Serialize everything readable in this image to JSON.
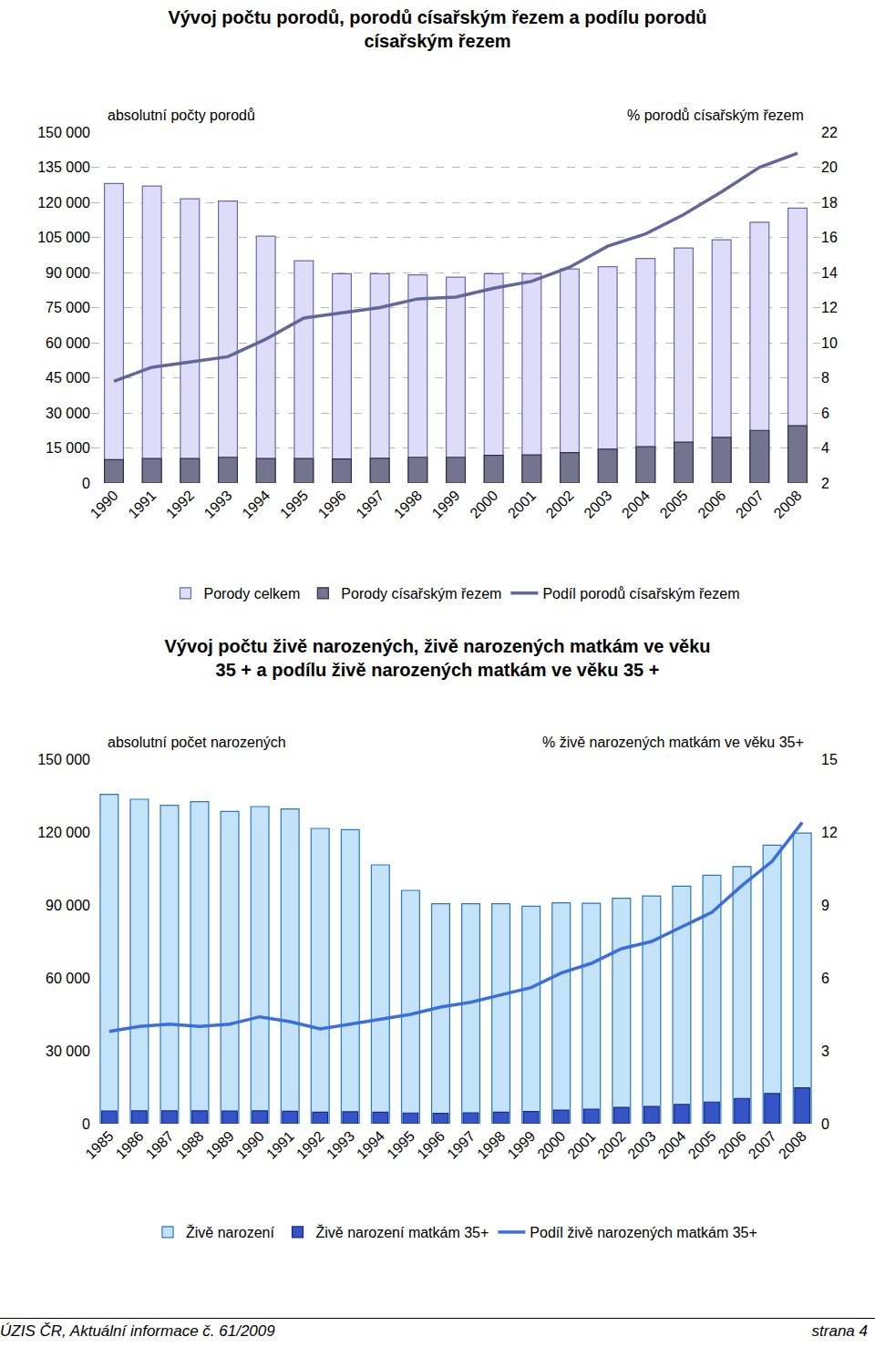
{
  "chart_data": [
    {
      "type": "bar",
      "title": [
        "Vývoj počtu porodů, porodů císařským řezem a podílu porodů",
        "císařským řezem"
      ],
      "ylabel": "absolutní počty porodů",
      "y2label": "% porodů císařským řezem",
      "categories": [
        "1990",
        "1991",
        "1992",
        "1993",
        "1994",
        "1995",
        "1996",
        "1997",
        "1998",
        "1999",
        "2000",
        "2001",
        "2002",
        "2003",
        "2004",
        "2005",
        "2006",
        "2007",
        "2008"
      ],
      "series": [
        {
          "name": "Porody celkem",
          "color": "#dedcf8",
          "values": [
            128000,
            127000,
            121500,
            120500,
            105500,
            95000,
            89500,
            89500,
            89000,
            88000,
            89500,
            89500,
            91500,
            92500,
            96000,
            100500,
            104000,
            111500,
            117500
          ]
        },
        {
          "name": "Porody císařským řezem",
          "color": "#74748e",
          "values": [
            10000,
            10500,
            10500,
            11000,
            10500,
            10500,
            10300,
            10600,
            11000,
            11000,
            11800,
            12000,
            13000,
            14500,
            15500,
            17500,
            19500,
            22500,
            24500
          ]
        },
        {
          "name": "Podíl porodů císařským řezem",
          "color": "#62669a",
          "type": "line",
          "axis": "y2",
          "values": [
            7.8,
            8.6,
            8.9,
            9.2,
            10.2,
            11.4,
            11.7,
            12.0,
            12.5,
            12.6,
            13.1,
            13.5,
            14.3,
            15.5,
            16.2,
            17.3,
            18.6,
            20.0,
            20.8
          ]
        }
      ],
      "ylim": [
        0,
        150000
      ],
      "yticks": [
        0,
        {
          "value": 15000,
          "label": "15 000"
        },
        {
          "value": 30000,
          "label": "30 000"
        },
        {
          "value": 45000,
          "label": "45 000"
        },
        {
          "value": 60000,
          "label": "60 000"
        },
        {
          "value": 75000,
          "label": "75 000"
        },
        {
          "value": 90000,
          "label": "90 000"
        },
        {
          "value": 105000,
          "label": "105 000"
        },
        {
          "value": 120000,
          "label": "120 000"
        },
        {
          "value": 135000,
          "label": "135 000"
        },
        {
          "value": 150000,
          "label": "150 000"
        }
      ],
      "y2lim": [
        2,
        22
      ],
      "y2ticks": [
        2,
        4,
        6,
        8,
        10,
        12,
        14,
        16,
        18,
        20,
        22
      ],
      "grid": true,
      "legend": "bottom"
    },
    {
      "type": "bar",
      "title": [
        "Vývoj počtu živě narozených, živě narozených matkám ve věku",
        "35 + a podílu živě narozených matkám ve věku 35 +"
      ],
      "ylabel": "absolutní počet narozených",
      "y2label": "% živě narozených matkám ve věku 35+",
      "categories": [
        "1985",
        "1986",
        "1987",
        "1988",
        "1989",
        "1990",
        "1991",
        "1992",
        "1993",
        "1994",
        "1995",
        "1996",
        "1997",
        "1998",
        "1999",
        "2000",
        "2001",
        "2002",
        "2003",
        "2004",
        "2005",
        "2006",
        "2007",
        "2008"
      ],
      "series": [
        {
          "name": "Živě narození",
          "color": "#c4e2f8",
          "values": [
            135500,
            133500,
            131000,
            132500,
            128500,
            130500,
            129500,
            121500,
            121000,
            106500,
            96000,
            90500,
            90500,
            90500,
            89500,
            90900,
            90700,
            92800,
            93700,
            97700,
            102200,
            105800,
            114600,
            119600
          ]
        },
        {
          "name": "Živě narození matkám 35+",
          "color": "#3454c8",
          "values": [
            5200,
            5300,
            5300,
            5300,
            5200,
            5300,
            5100,
            4700,
            4900,
            4700,
            4400,
            4300,
            4500,
            4700,
            5000,
            5600,
            6000,
            6700,
            7100,
            7900,
            8900,
            10400,
            12400,
            14800
          ]
        },
        {
          "name": "Podíl živě narozených matkám 35+",
          "color": "#3a6ee0",
          "type": "line",
          "axis": "y2",
          "values": [
            3.8,
            4.0,
            4.1,
            4.0,
            4.1,
            4.4,
            4.2,
            3.9,
            4.1,
            4.3,
            4.5,
            4.8,
            5.0,
            5.3,
            5.6,
            6.2,
            6.6,
            7.2,
            7.5,
            8.1,
            8.7,
            9.8,
            10.8,
            12.4
          ]
        }
      ],
      "ylim": [
        0,
        150000
      ],
      "yticks": [
        0,
        {
          "value": 30000,
          "label": "30 000"
        },
        {
          "value": 60000,
          "label": "60 000"
        },
        {
          "value": 90000,
          "label": "90 000"
        },
        {
          "value": 120000,
          "label": "120 000"
        },
        {
          "value": 150000,
          "label": "150 000"
        }
      ],
      "y2lim": [
        0,
        15
      ],
      "y2ticks": [
        0,
        3,
        6,
        9,
        12,
        15
      ],
      "grid": false,
      "legend": "bottom"
    }
  ],
  "footer": {
    "left": "ÚZIS ČR, Aktuální informace č. 61/2009",
    "right": "strana 4"
  }
}
